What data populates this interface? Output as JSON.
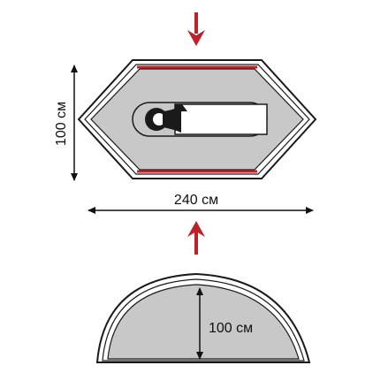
{
  "top_view": {
    "length_label": "240 см",
    "width_label": "100 см"
  },
  "side_view": {
    "height_label": "100 см"
  },
  "colors": {
    "floor_fill": "#c8c8c8",
    "outline": "#1a1a1a",
    "accent_red": "#c8202a",
    "arrow_red": "#c0202a",
    "dimension_line": "#111111"
  },
  "icons": {
    "top_arrow": "arrow-down-icon",
    "bottom_arrow": "arrow-up-icon",
    "sleeper": "sleeping-bag-icon"
  }
}
